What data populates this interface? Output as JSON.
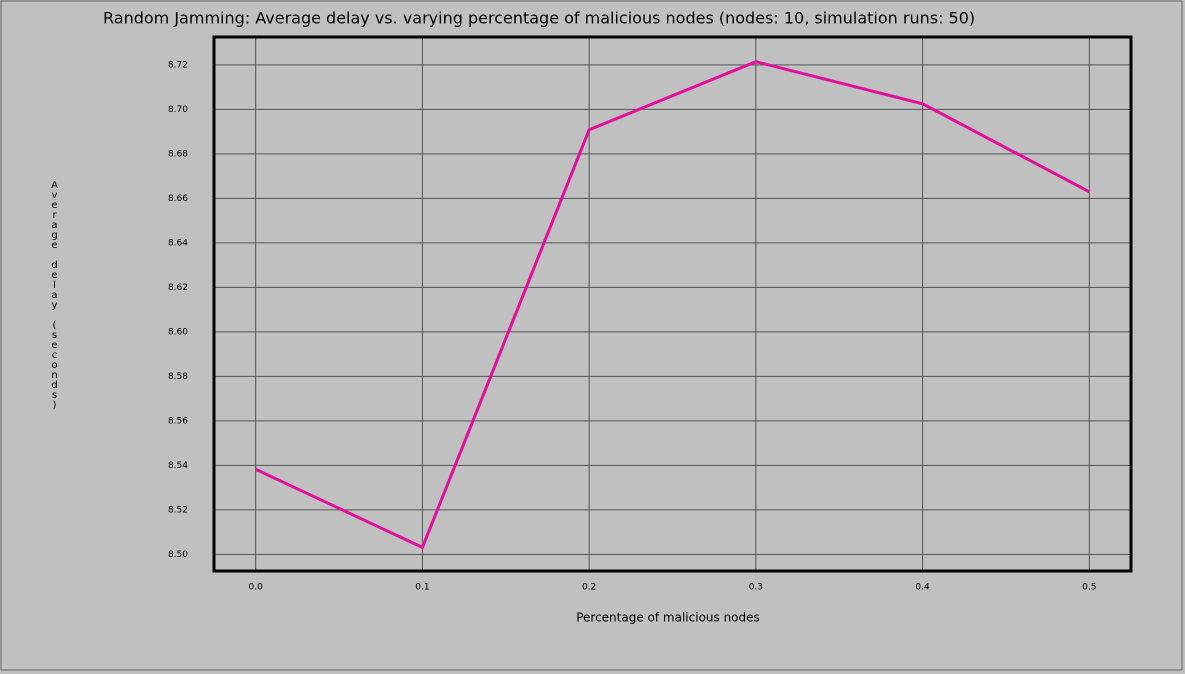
{
  "chart_data": {
    "type": "line",
    "title": "Random Jamming: Average delay vs. varying percentage of malicious nodes (nodes: 10, simulation runs: 50)",
    "x_label": "Percentage of malicious nodes",
    "y_label": "Average delay (seconds)",
    "x": [
      0.0,
      0.1,
      0.2,
      0.3,
      0.4,
      0.5
    ],
    "series": [
      {
        "name": "Average delay",
        "color": "#e3109c",
        "values": [
          8.5382,
          8.5031,
          8.6908,
          8.7214,
          8.7025,
          8.6629
        ]
      }
    ],
    "xlim": [
      -0.025,
      0.525
    ],
    "xticks": [
      {
        "value": 0,
        "label": "0.0"
      },
      0.1,
      0.2,
      0.3,
      0.4,
      0.5
    ],
    "ylim": [
      8.4925,
      8.7325
    ],
    "yticks": [
      {
        "value": 8.5,
        "label": "8.50"
      },
      8.52,
      8.54,
      8.56,
      8.58,
      {
        "value": 8.6,
        "label": "8.60"
      },
      8.62,
      8.64,
      8.66,
      8.68,
      {
        "value": 8.7,
        "label": "8.70"
      },
      8.72
    ],
    "grid": true
  }
}
